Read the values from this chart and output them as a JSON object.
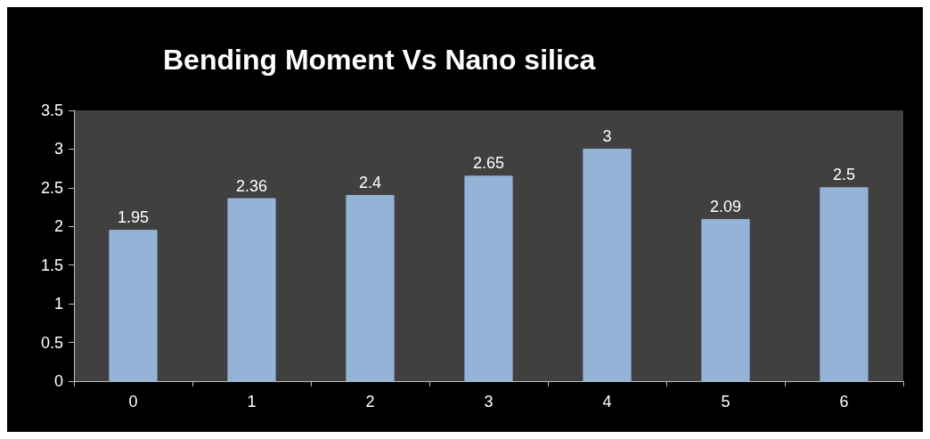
{
  "chart_data": {
    "type": "bar",
    "title": "Bending Moment Vs Nano silica",
    "categories": [
      "0",
      "1",
      "2",
      "3",
      "4",
      "5",
      "6"
    ],
    "values": [
      1.95,
      2.36,
      2.4,
      2.65,
      3,
      2.09,
      2.5
    ],
    "color": "#95b3d7",
    "ylim": [
      0,
      3.5
    ],
    "yticks": [
      0,
      0.5,
      1,
      1.5,
      2,
      2.5,
      3,
      3.5
    ],
    "grid": false,
    "data_labels": true
  }
}
